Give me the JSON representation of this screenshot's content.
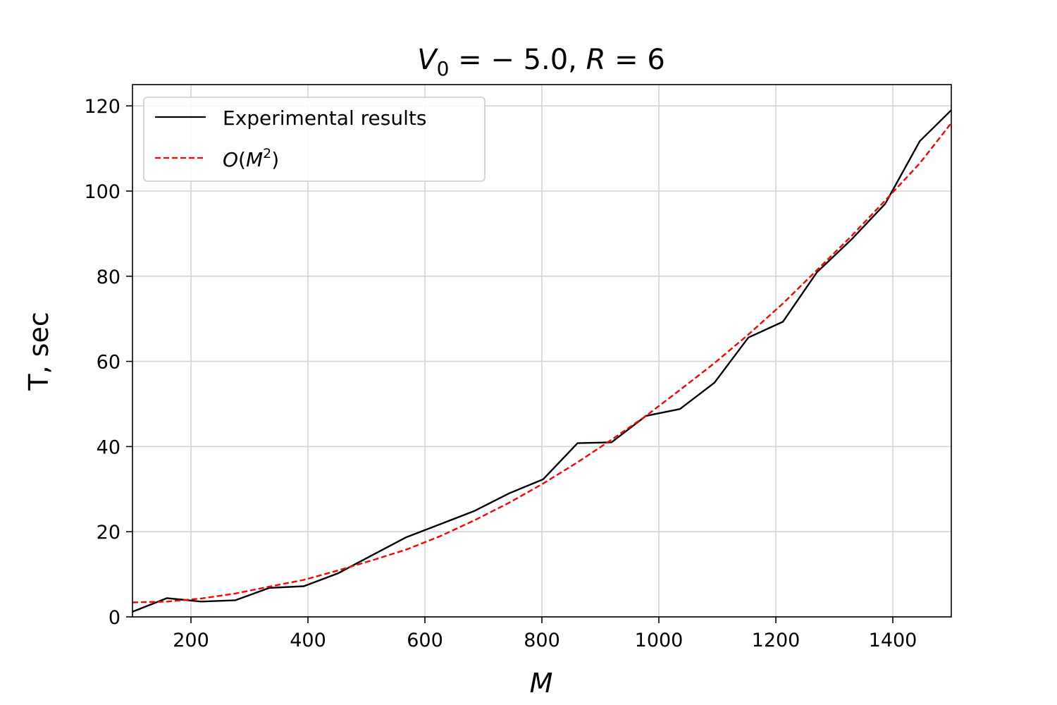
{
  "chart_data": {
    "type": "line",
    "title": {
      "v": "V",
      "sub": "0",
      "rest": " = − 5.0,  ",
      "r": "R",
      "eq": " = 6"
    },
    "xlabel": "M",
    "ylabel": "T, sec",
    "xlim": [
      100,
      1500
    ],
    "ylim": [
      0,
      125
    ],
    "xticks": [
      200,
      400,
      600,
      800,
      1000,
      1200,
      1400
    ],
    "yticks": [
      0,
      20,
      40,
      60,
      80,
      100,
      120
    ],
    "grid": true,
    "legend_position": "upper-left",
    "series": [
      {
        "name": "Experimental results",
        "color": "#000000",
        "style": "solid",
        "x": [
          100,
          159,
          217,
          276,
          334,
          393,
          451,
          510,
          568,
          627,
          685,
          744,
          802,
          861,
          919,
          978,
          1036,
          1095,
          1153,
          1212,
          1270,
          1329,
          1387,
          1446,
          1500
        ],
        "y": [
          1.2,
          4.4,
          3.6,
          3.9,
          6.8,
          7.2,
          10.2,
          14.5,
          18.7,
          21.8,
          24.9,
          29.0,
          32.3,
          40.8,
          41.0,
          47.2,
          48.8,
          55.0,
          65.6,
          69.3,
          80.9,
          88.6,
          97.0,
          111.7,
          119.0
        ]
      },
      {
        "name": {
          "o": "O",
          "open": "(",
          "m": "M",
          "sup": "2",
          "close": ")"
        },
        "color": "#ff0000",
        "style": "dashed",
        "x": [
          100,
          159,
          217,
          276,
          334,
          393,
          451,
          510,
          568,
          627,
          685,
          744,
          802,
          861,
          919,
          978,
          1036,
          1095,
          1153,
          1212,
          1270,
          1329,
          1387,
          1446,
          1500
        ],
        "y": [
          3.4,
          3.6,
          4.3,
          5.5,
          7.1,
          8.7,
          10.9,
          13.3,
          15.8,
          19.0,
          22.7,
          26.8,
          31.3,
          36.3,
          41.6,
          47.2,
          53.3,
          59.6,
          66.3,
          73.6,
          81.4,
          89.4,
          97.8,
          106.5,
          116.0
        ]
      }
    ]
  }
}
